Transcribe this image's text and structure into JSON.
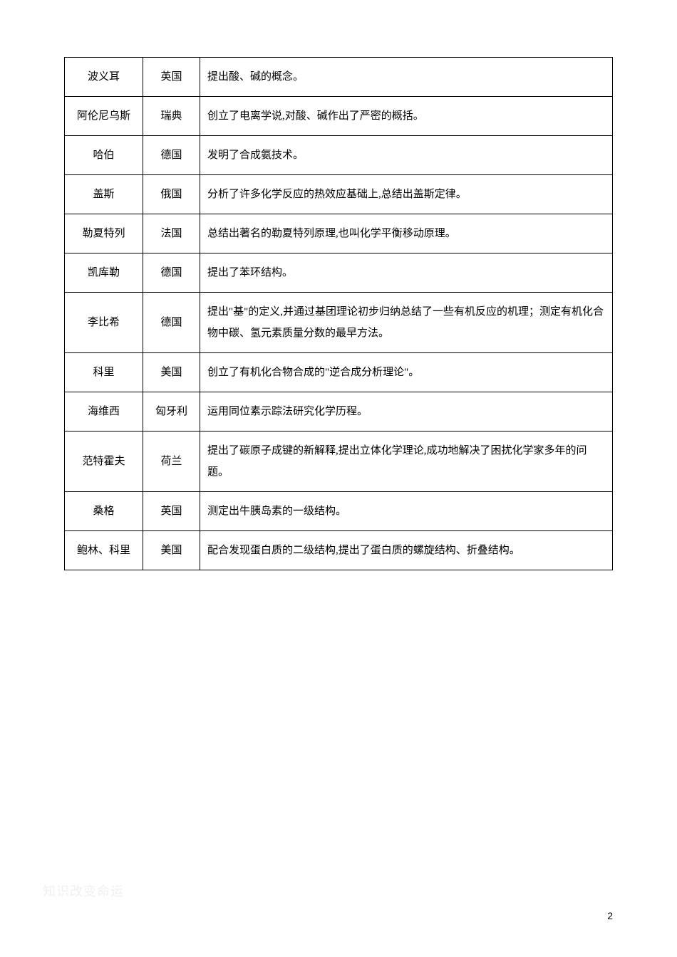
{
  "table": {
    "columns": {
      "name_width": 110,
      "country_width": 80
    },
    "border_color": "#000000",
    "text_color": "#000000",
    "font_size": 15,
    "rows": [
      {
        "name": "波义耳",
        "country": "英国",
        "desc": "提出酸、碱的概念。"
      },
      {
        "name": "阿伦尼乌斯",
        "country": "瑞典",
        "desc": "创立了电离学说,对酸、碱作出了严密的概括。"
      },
      {
        "name": "哈伯",
        "country": "德国",
        "desc": "发明了合成氨技术。"
      },
      {
        "name": "盖斯",
        "country": "俄国",
        "desc": "分析了许多化学反应的热效应基础上,总结出盖斯定律。"
      },
      {
        "name": "勒夏特列",
        "country": "法国",
        "desc": "总结出著名的勒夏特列原理,也叫化学平衡移动原理。"
      },
      {
        "name": "凯库勒",
        "country": "德国",
        "desc": "提出了苯环结构。"
      },
      {
        "name": "李比希",
        "country": "德国",
        "desc": "提出\"基\"的定义,并通过基团理论初步归纳总结了一些有机反应的机理；测定有机化合物中碳、氢元素质量分数的最早方法。"
      },
      {
        "name": "科里",
        "country": "美国",
        "desc": "创立了有机化合物合成的\"逆合成分析理论\"。"
      },
      {
        "name": "海维西",
        "country": "匈牙利",
        "desc": "运用同位素示踪法研究化学历程。"
      },
      {
        "name": "范特霍夫",
        "country": "荷兰",
        "desc": "提出了碳原子成键的新解释,提出立体化学理论,成功地解决了困扰化学家多年的问题。"
      },
      {
        "name": "桑格",
        "country": "英国",
        "desc": "测定出牛胰岛素的一级结构。"
      },
      {
        "name": "鲍林、科里",
        "country": "美国",
        "desc": "配合发现蛋白质的二级结构,提出了蛋白质的螺旋结构、折叠结构。"
      }
    ]
  },
  "watermark": {
    "text": "知识改变命运",
    "color": "#f0f0f0",
    "font_size": 18
  },
  "page_number": {
    "text": "2",
    "color": "#000000",
    "font_size": 14
  }
}
